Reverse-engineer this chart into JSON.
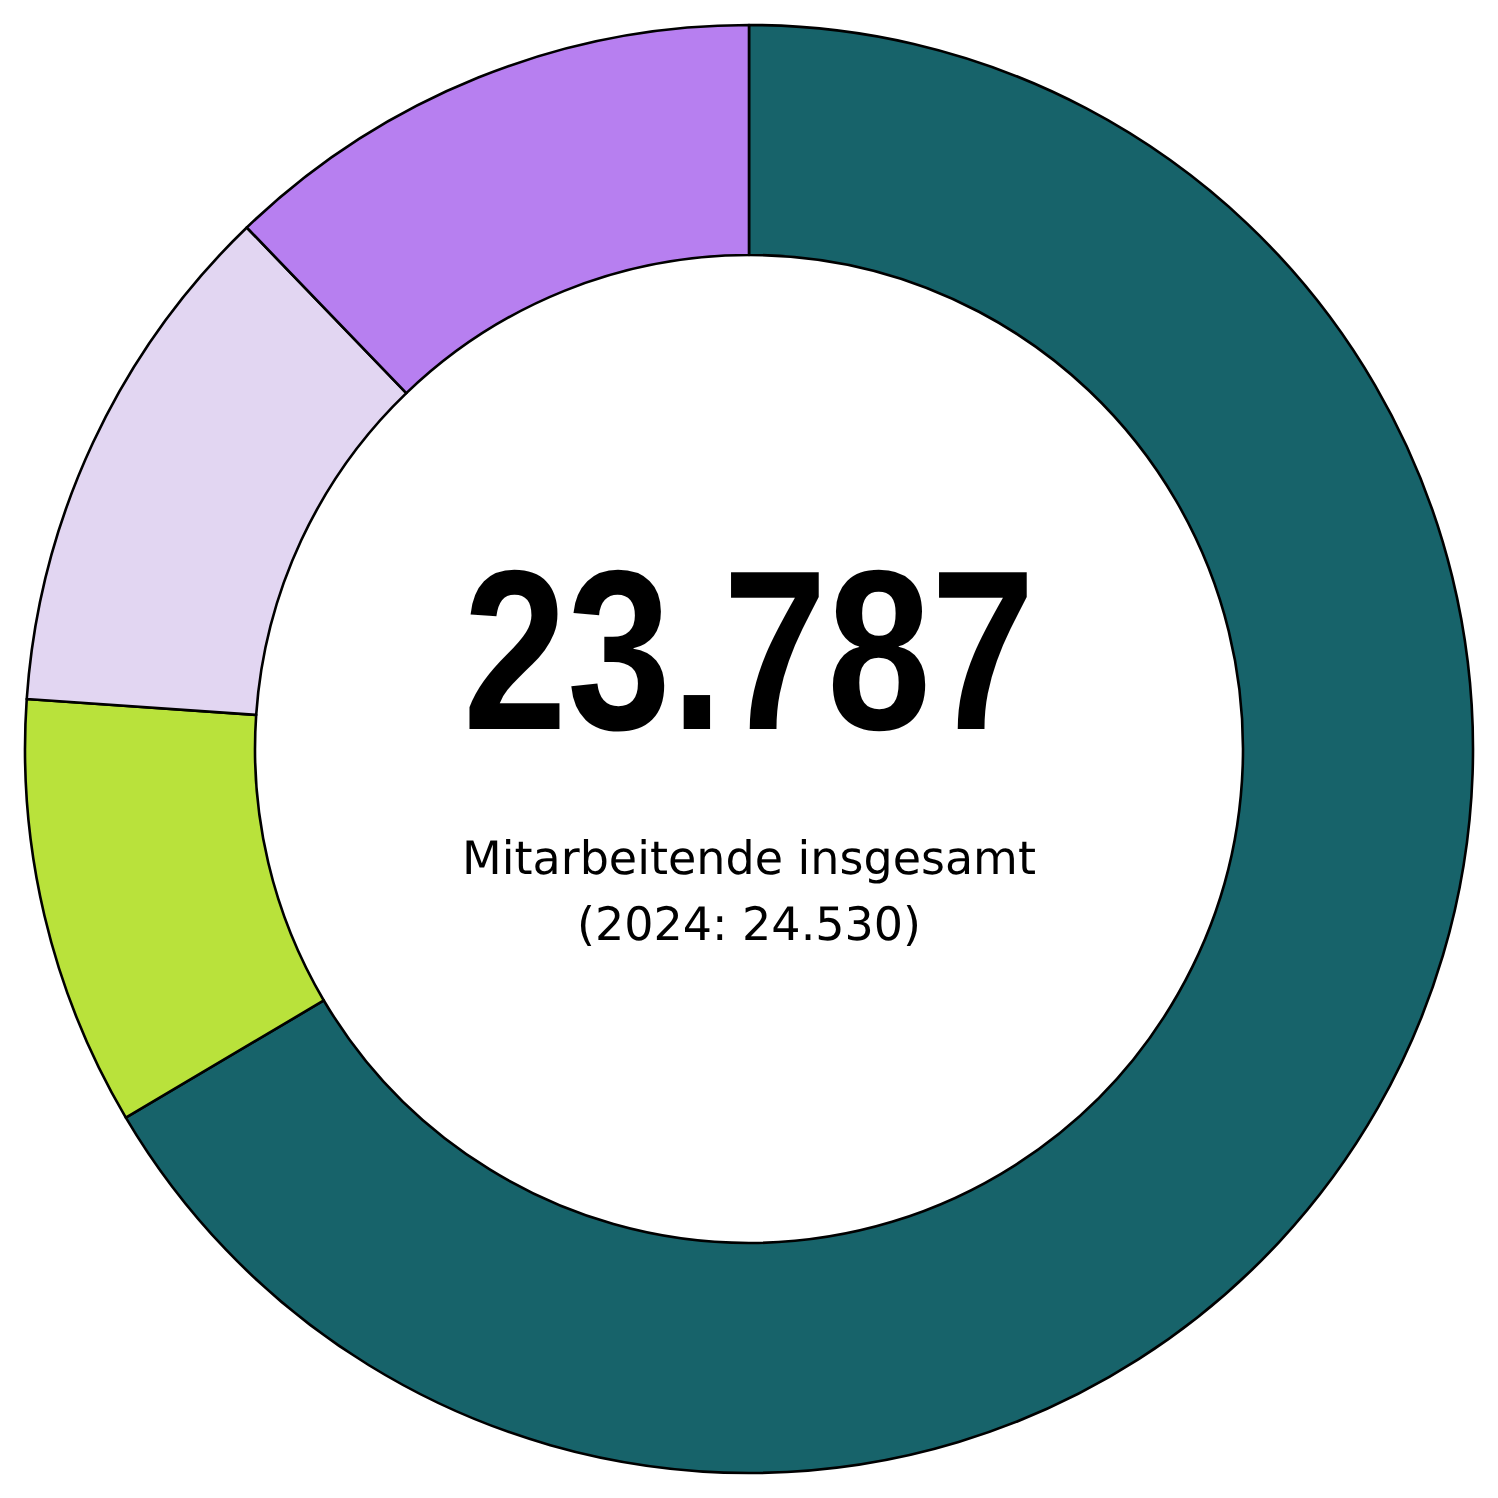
{
  "chart_data": {
    "type": "donut",
    "title": "23.787",
    "subtitle": "Mitarbeitende insgesamt",
    "annotations": [
      "(2024: 24.530)"
    ],
    "categories": [
      null,
      null,
      null,
      null
    ],
    "values": [
      66.5,
      9.6,
      11.7,
      12.2
    ],
    "colors": [
      "#17636a",
      "#b9e23b",
      "#e2d6f2",
      "#b77ff0"
    ]
  }
}
